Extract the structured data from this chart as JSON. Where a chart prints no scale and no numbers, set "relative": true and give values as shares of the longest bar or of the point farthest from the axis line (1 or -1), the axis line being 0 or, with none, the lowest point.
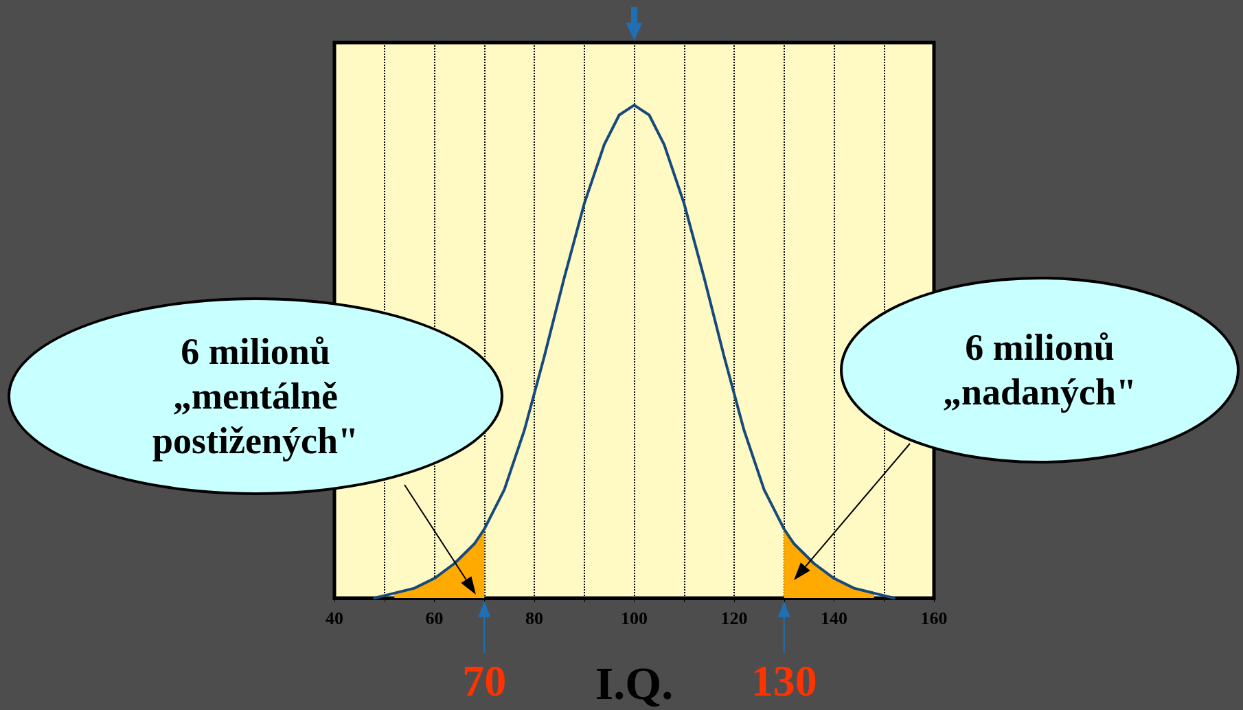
{
  "chart_data": {
    "type": "line",
    "xlabel": "I.Q.",
    "relative": true,
    "xlim": [
      40,
      160
    ],
    "xticks": [
      40,
      {
        "value": 50,
        "label": null
      },
      60,
      {
        "value": 70,
        "label": null
      },
      80,
      {
        "value": 90,
        "label": null
      },
      100,
      {
        "value": 110,
        "label": null
      },
      120,
      {
        "value": 130,
        "label": null
      },
      140,
      {
        "value": 150,
        "label": null
      },
      160
    ],
    "grid": "x",
    "marker": "none",
    "series": [
      {
        "type": "area",
        "color": "#ffaa00",
        "x": [
          52,
          56,
          60,
          64,
          68,
          70
        ],
        "values": [
          0.01,
          0.02,
          0.04,
          0.07,
          0.11,
          0.14
        ]
      },
      {
        "type": "area",
        "color": "#ffaa00",
        "x": [
          130,
          132,
          136,
          140,
          144,
          148
        ],
        "values": [
          0.14,
          0.11,
          0.07,
          0.04,
          0.02,
          0.01
        ]
      },
      {
        "color": "#174a7c",
        "x": [
          48,
          52,
          56,
          60,
          64,
          68,
          70,
          74,
          78,
          82,
          86,
          90,
          94,
          97,
          100,
          103,
          106,
          110,
          114,
          118,
          122,
          126,
          130,
          132,
          136,
          140,
          144,
          148,
          152
        ],
        "values": [
          0,
          0.01,
          0.02,
          0.04,
          0.07,
          0.11,
          0.14,
          0.22,
          0.34,
          0.49,
          0.65,
          0.8,
          0.92,
          0.98,
          1,
          0.98,
          0.92,
          0.8,
          0.65,
          0.49,
          0.34,
          0.22,
          0.14,
          0.11,
          0.07,
          0.04,
          0.02,
          0.01,
          0
        ]
      }
    ],
    "ref_lines": [
      {
        "axis": "x",
        "value": 70,
        "label": "70",
        "color": "#1f6fb4"
      },
      {
        "axis": "x",
        "value": 130,
        "label": "130",
        "color": "#1f6fb4"
      }
    ],
    "annotations": [
      "6 milionů „mentálně postižených\"",
      "6 milionů „nadaných\""
    ]
  }
}
